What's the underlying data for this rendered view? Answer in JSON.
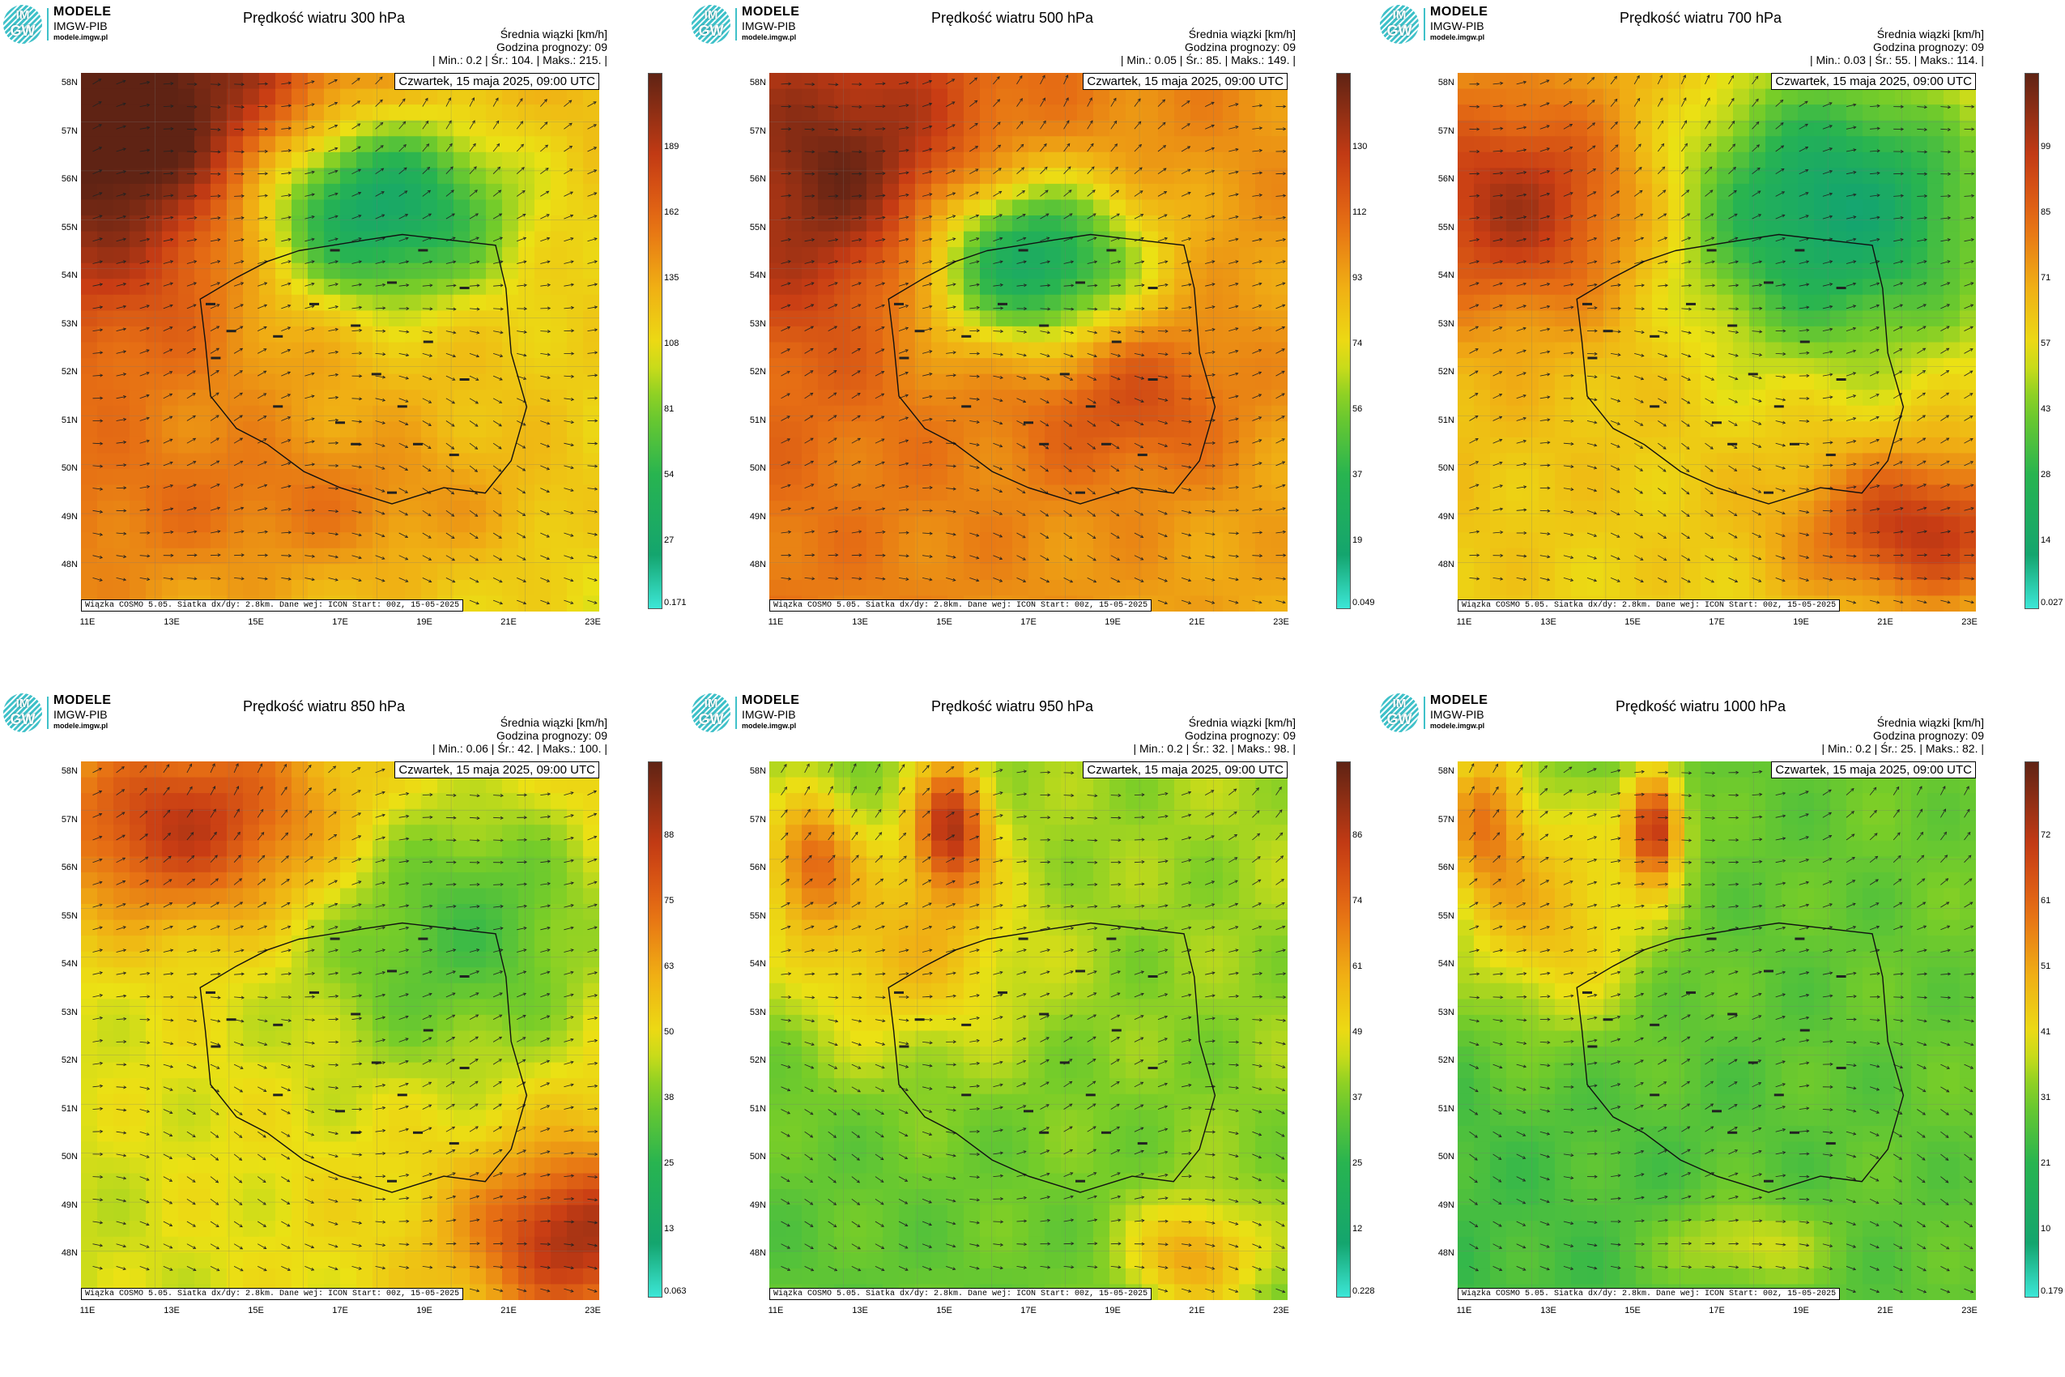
{
  "logo": {
    "badge_top": "IM",
    "badge_bottom": "GW",
    "line1": "MODELE",
    "line2": "IMGW-PIB",
    "line3": "modele.imgw.pl"
  },
  "lat_labels": [
    "58N",
    "57N",
    "56N",
    "55N",
    "54N",
    "53N",
    "52N",
    "51N",
    "50N",
    "49N",
    "48N"
  ],
  "lon_labels": [
    "11E",
    "13E",
    "15E",
    "17E",
    "19E",
    "21E",
    "23E"
  ],
  "footer": "Wiązka COSMO 5.05. Siatka dx/dy: 2.8km. Dane wej: ICON Start: 00z, 15-05-2025",
  "date": "Czwartek, 15 maja 2025, 09:00 UTC",
  "stats_line1": "Średnia wiązki [km/h]",
  "stats_line2": "Godzina prognozy: 09",
  "colors": {
    "low": "#40e8d8",
    "green": "#3cb850",
    "yellow": "#f0e010",
    "orange": "#e88a10",
    "red": "#c83a10",
    "dark": "#6a2a14"
  },
  "panels": [
    {
      "title": "Prędkość wiatru 300 hPa",
      "stats": "| Min.:    0.2 | Śr.:    104. | Maks.:    215. |",
      "colorbar": [
        "189",
        "162",
        "135",
        "108",
        "81",
        "54",
        "27",
        "0.171"
      ],
      "min": 0.2,
      "mean": 104,
      "max": 215
    },
    {
      "title": "Prędkość wiatru 500 hPa",
      "stats": "| Min.:    0.05 | Śr.:    85. | Maks.:    149. |",
      "colorbar": [
        "130",
        "112",
        "93",
        "74",
        "56",
        "37",
        "19",
        "0.049"
      ],
      "min": 0.05,
      "mean": 85,
      "max": 149
    },
    {
      "title": "Prędkość wiatru 700 hPa",
      "stats": "| Min.:    0.03 | Śr.:    55. | Maks.:    114. |",
      "colorbar": [
        "99",
        "85",
        "71",
        "57",
        "43",
        "28",
        "14",
        "0.027"
      ],
      "min": 0.03,
      "mean": 55,
      "max": 114
    },
    {
      "title": "Prędkość wiatru 850 hPa",
      "stats": "| Min.:    0.06 | Śr.:    42. | Maks.:    100. |",
      "colorbar": [
        "88",
        "75",
        "63",
        "50",
        "38",
        "25",
        "13",
        "0.063"
      ],
      "min": 0.06,
      "mean": 42,
      "max": 100
    },
    {
      "title": "Prędkość wiatru 950 hPa",
      "stats": "| Min.:    0.2 | Śr.:    32. | Maks.:    98. |",
      "colorbar": [
        "86",
        "74",
        "61",
        "49",
        "37",
        "25",
        "12",
        "0.228"
      ],
      "min": 0.2,
      "mean": 32,
      "max": 98
    },
    {
      "title": "Prędkość wiatru 1000 hPa",
      "stats": "| Min.:    0.2 | Śr.:    25. | Maks.:    82. |",
      "colorbar": [
        "72",
        "61",
        "51",
        "41",
        "31",
        "21",
        "10",
        "0.179"
      ],
      "min": 0.2,
      "mean": 25,
      "max": 82
    }
  ]
}
